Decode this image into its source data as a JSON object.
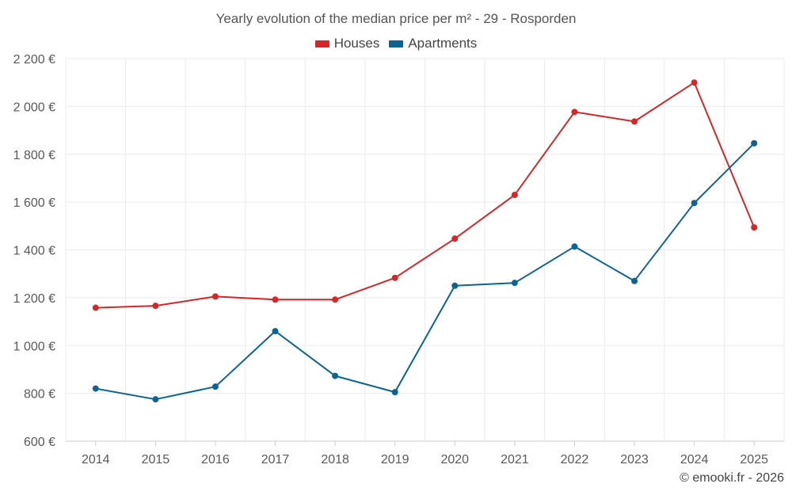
{
  "chart_data": {
    "type": "line",
    "title": "Yearly evolution of the median price per m² - 29 - Rosporden",
    "categories": [
      "2014",
      "2015",
      "2016",
      "2017",
      "2018",
      "2019",
      "2020",
      "2021",
      "2022",
      "2023",
      "2024",
      "2025"
    ],
    "series": [
      {
        "name": "Houses",
        "color": "#d62728",
        "values": [
          1158,
          1166,
          1205,
          1192,
          1192,
          1283,
          1447,
          1630,
          1977,
          1937,
          2100,
          1494
        ]
      },
      {
        "name": "Apartments",
        "color": "#0a6496",
        "values": [
          820,
          775,
          828,
          1060,
          873,
          805,
          1250,
          1262,
          1414,
          1270,
          1596,
          1846
        ]
      }
    ],
    "ylim": [
      600,
      2200
    ],
    "yticks": [
      600,
      800,
      1000,
      1200,
      1400,
      1600,
      1800,
      2000,
      2200
    ],
    "ytick_labels": [
      "600 €",
      "800 €",
      "1 000 €",
      "1 200 €",
      "1 400 €",
      "1 600 €",
      "1 800 €",
      "2 000 €",
      "2 200 €"
    ],
    "grid": true,
    "legend_position": "top-center"
  },
  "credit": "© emooki.fr - 2026"
}
